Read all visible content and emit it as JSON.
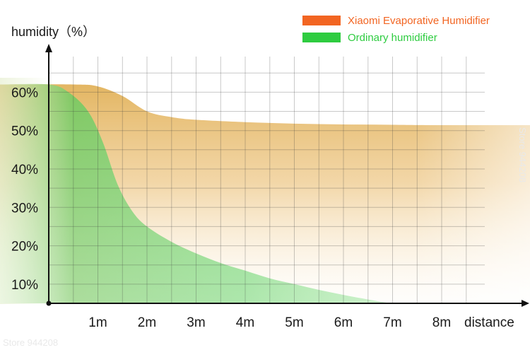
{
  "chart_data": {
    "type": "area",
    "ylabel": "humidity（%）",
    "xlabel": "distance",
    "x_ticks": [
      "1m",
      "2m",
      "3m",
      "4m",
      "5m",
      "6m",
      "7m",
      "8m"
    ],
    "y_ticks": [
      "10%",
      "20%",
      "30%",
      "40%",
      "50%",
      "60%"
    ],
    "xlim": [
      -1,
      8.8
    ],
    "ylim": [
      5,
      66
    ],
    "grid": true,
    "legend_position": "top-right",
    "series": [
      {
        "name": "Xiaomi Evaporative Humidifier",
        "color": "#f26522",
        "fill": "#e6b45a",
        "x": [
          -1,
          0.5,
          1.0,
          1.5,
          2.0,
          2.5,
          3.0,
          4.0,
          5.0,
          6.0,
          7.0,
          8.0,
          8.8
        ],
        "y": [
          62,
          62,
          61.5,
          59,
          55,
          53.5,
          52.8,
          52.2,
          51.8,
          51.6,
          51.5,
          51.4,
          51.4
        ]
      },
      {
        "name": "Ordinary humidifier",
        "color": "#2ecc40",
        "fill": "#7dd66a",
        "x": [
          -1,
          0.0,
          0.4,
          0.8,
          1.1,
          1.4,
          1.7,
          2.0,
          2.5,
          3.0,
          3.5,
          4.0,
          4.5,
          5.0,
          5.5,
          6.0,
          6.5,
          7.0,
          7.3
        ],
        "y": [
          62,
          62,
          60,
          55,
          47,
          36,
          29,
          25,
          21,
          18,
          15.5,
          13.5,
          11.5,
          10,
          8.5,
          7.2,
          6,
          5,
          5
        ]
      }
    ]
  },
  "watermarks": {
    "bottom_left": "Store 944208",
    "right_side": "Store 944208"
  }
}
